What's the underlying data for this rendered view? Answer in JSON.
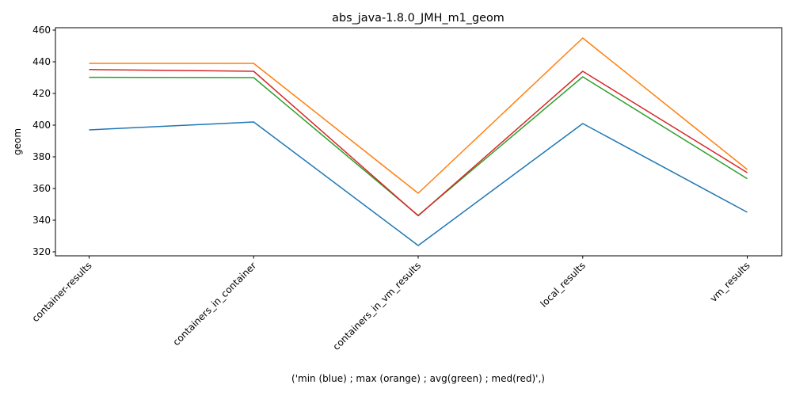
{
  "chart_data": {
    "type": "line",
    "title": "abs_java-1.8.0_JMH_m1_geom",
    "xlabel": "('min (blue) ; max (orange) ; avg(green) ; med(red)',)",
    "ylabel": "geom",
    "categories": [
      "container-results",
      "containers_in_container",
      "containers_in_vm_results",
      "local_results",
      "vm_results"
    ],
    "ylim": [
      317.5,
      461.5
    ],
    "yticks": [
      320,
      340,
      360,
      380,
      400,
      420,
      440,
      460
    ],
    "grid": false,
    "series": [
      {
        "color": "#1f77b4",
        "values": [
          397,
          402,
          324,
          401,
          345
        ]
      },
      {
        "color": "#ff7f0e",
        "values": [
          439,
          439,
          357,
          455,
          372
        ]
      },
      {
        "color": "#2ca02c",
        "values": [
          430.2,
          430,
          343,
          430.5,
          366.2
        ]
      },
      {
        "color": "#d62728",
        "values": [
          435.1,
          434,
          342.8,
          434,
          370
        ]
      }
    ]
  }
}
